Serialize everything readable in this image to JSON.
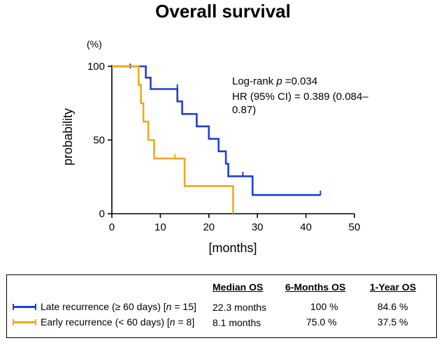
{
  "chart_data": {
    "type": "line",
    "title": "Overall survival",
    "xlabel": "[months]",
    "ylabel": "probability",
    "yunit": "(%)",
    "xlim": [
      0,
      50
    ],
    "ylim": [
      0,
      100
    ],
    "xticks": [
      0,
      10,
      20,
      30,
      40,
      50
    ],
    "yticks": [
      0,
      50,
      100
    ],
    "grid": false,
    "annotations": {
      "logrank_prefix": "Log-rank ",
      "logrank_p": "p",
      "logrank_value": " =0.034",
      "hr_line1": "HR (95% CI) = 0.389 (0.084–",
      "hr_line2": "0.87)"
    },
    "series": [
      {
        "name": "Late recurrence (≥ 60 days) [n = 15]",
        "color": "#1f3fd1",
        "steps": [
          [
            0,
            100
          ],
          [
            7,
            100
          ],
          [
            7,
            92.3
          ],
          [
            8,
            92.3
          ],
          [
            8,
            84.6
          ],
          [
            13.5,
            84.6
          ],
          [
            13.5,
            76.2
          ],
          [
            14.5,
            76.2
          ],
          [
            14.5,
            67.7
          ],
          [
            17.5,
            67.7
          ],
          [
            17.5,
            59.3
          ],
          [
            20,
            59.3
          ],
          [
            20,
            50.8
          ],
          [
            22,
            50.8
          ],
          [
            22,
            42.3
          ],
          [
            23.5,
            42.3
          ],
          [
            23.5,
            33.9
          ],
          [
            24,
            33.9
          ],
          [
            24,
            25.4
          ],
          [
            29,
            25.4
          ],
          [
            29,
            12.7
          ],
          [
            43,
            12.7
          ]
        ],
        "censored": [
          [
            3.8,
            100
          ],
          [
            13.5,
            86
          ],
          [
            27,
            26.5
          ],
          [
            43,
            13.8
          ]
        ]
      },
      {
        "name": "Early recurrence (< 60 days) [n = 8]",
        "color": "#f2a81d",
        "steps": [
          [
            0,
            100
          ],
          [
            5.5,
            100
          ],
          [
            5.5,
            87.5
          ],
          [
            6,
            87.5
          ],
          [
            6,
            75
          ],
          [
            6.5,
            75
          ],
          [
            6.5,
            62.5
          ],
          [
            7.5,
            62.5
          ],
          [
            7.5,
            50
          ],
          [
            8.7,
            50
          ],
          [
            8.7,
            37.5
          ],
          [
            15,
            37.5
          ],
          [
            15,
            18.75
          ],
          [
            25,
            18.75
          ],
          [
            25,
            0
          ]
        ],
        "censored": [
          [
            13,
            38.7
          ]
        ]
      }
    ]
  },
  "legend": {
    "headers": [
      "Median OS",
      "6-Months OS",
      "1-Year OS"
    ],
    "rows": [
      {
        "label_main": "Late recurrence (≥ 60 days) [",
        "label_n": "n",
        "label_end": " = 15]",
        "median": "22.3 months",
        "six": "100 %",
        "year": "84.6 %",
        "color": "#1f3fd1"
      },
      {
        "label_main": "Early recurrence (< 60 days) [",
        "label_n": "n",
        "label_end": " = 8]",
        "median": "8.1 months",
        "six": "75.0 %",
        "year": "37.5 %",
        "color": "#f2a81d"
      }
    ]
  }
}
